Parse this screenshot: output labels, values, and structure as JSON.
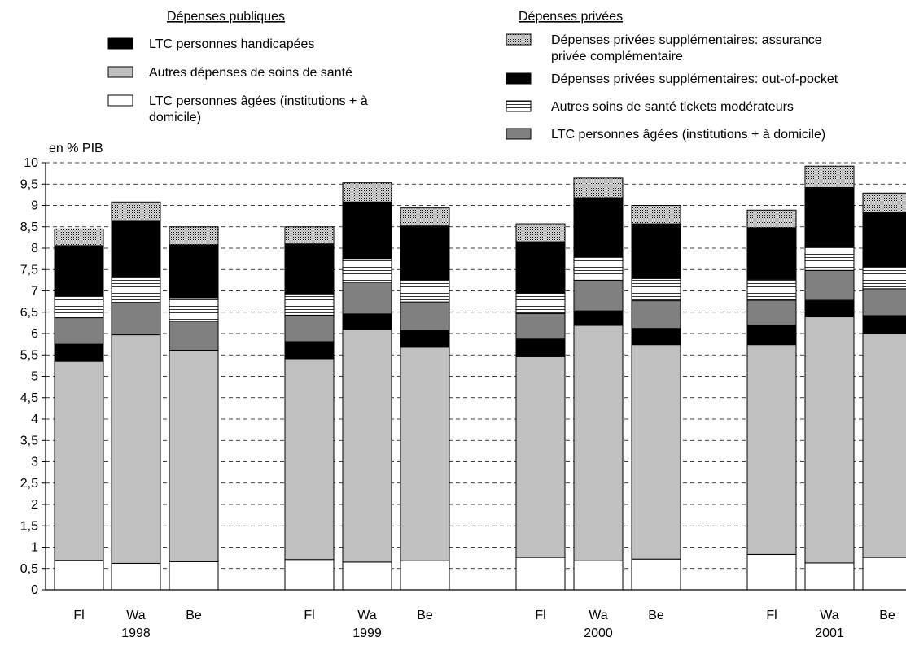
{
  "chart_data": {
    "type": "bar",
    "stacked": true,
    "ylabel": "en % PIB",
    "ylim": [
      0,
      10
    ],
    "yticks": [
      "0",
      "0,5",
      "1",
      "1,5",
      "2",
      "2,5",
      "3",
      "3,5",
      "4",
      "4,5",
      "5",
      "5,5",
      "6",
      "6,5",
      "7",
      "7,5",
      "8",
      "8,5",
      "9",
      "9,5",
      "10"
    ],
    "grid": "horizontal dashed",
    "legend_groups": [
      {
        "heading": "Dépenses publiques",
        "placement": "top-left",
        "series_order": [
          2,
          1,
          0
        ]
      },
      {
        "heading": "Dépenses privées",
        "placement": "top-right",
        "series_order": [
          6,
          5,
          4,
          3
        ]
      }
    ],
    "groups": [
      {
        "year": "1998",
        "categories": [
          "Fl",
          "Wa",
          "Be"
        ]
      },
      {
        "year": "1999",
        "categories": [
          "Fl",
          "Wa",
          "Be"
        ]
      },
      {
        "year": "2000",
        "categories": [
          "Fl",
          "Wa",
          "Be"
        ]
      },
      {
        "year": "2001",
        "categories": [
          "Fl",
          "Wa",
          "Be"
        ]
      }
    ],
    "series": [
      {
        "name": "LTC personnes âgées (institutions + à domicile)",
        "group": "public",
        "pattern": "white",
        "values": [
          0.69,
          0.62,
          0.66,
          0.71,
          0.65,
          0.68,
          0.76,
          0.68,
          0.72,
          0.83,
          0.63,
          0.76
        ]
      },
      {
        "name": "Autres dépenses de soins de santé",
        "group": "public",
        "pattern": "lightgray",
        "values": [
          4.66,
          5.35,
          4.95,
          4.7,
          5.45,
          5.0,
          4.7,
          5.51,
          5.02,
          4.91,
          5.76,
          5.24
        ]
      },
      {
        "name": "LTC personnes handicapées",
        "group": "public",
        "pattern": "black",
        "values": [
          0.4,
          0.0,
          0.0,
          0.4,
          0.36,
          0.39,
          0.41,
          0.34,
          0.38,
          0.45,
          0.39,
          0.42
        ]
      },
      {
        "name": "LTC personnes âgées (institutions + à domicile)",
        "group": "private",
        "pattern": "darkgray",
        "values": [
          0.62,
          0.76,
          0.68,
          0.62,
          0.74,
          0.67,
          0.6,
          0.72,
          0.65,
          0.59,
          0.7,
          0.63
        ]
      },
      {
        "name": "Autres soins de santé tickets modérateurs",
        "group": "private",
        "pattern": "hstripes",
        "values": [
          0.51,
          0.58,
          0.55,
          0.5,
          0.56,
          0.52,
          0.48,
          0.55,
          0.52,
          0.49,
          0.56,
          0.52
        ]
      },
      {
        "name": "Dépenses privées supplémentaires: out-of-pocket",
        "group": "private",
        "pattern": "black",
        "values": [
          1.18,
          1.32,
          1.24,
          1.17,
          1.32,
          1.26,
          1.2,
          1.38,
          1.28,
          1.21,
          1.38,
          1.26
        ]
      },
      {
        "name": "Dépenses privées supplémentaires: assurance privée complémentaire",
        "group": "private",
        "pattern": "dots",
        "values": [
          0.39,
          0.45,
          0.42,
          0.4,
          0.45,
          0.42,
          0.42,
          0.46,
          0.43,
          0.41,
          0.5,
          0.46
        ]
      }
    ],
    "colors": {
      "black": "#000000",
      "lightgray": "#c0c0c0",
      "darkgray": "#808080",
      "white": "#ffffff",
      "grid": "#000000"
    }
  }
}
